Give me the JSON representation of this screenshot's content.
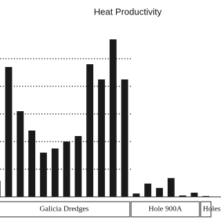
{
  "chart_data": {
    "type": "bar",
    "title": "Heat Productivity",
    "color": "#1a1a1a",
    "ylim": [
      0,
      6
    ],
    "yticks": [
      1,
      2,
      3,
      4,
      5
    ],
    "grid": true,
    "groups": [
      {
        "label": "Galicia Dredges",
        "values": [
          0.58,
          4.7,
          3.1,
          2.4,
          1.6,
          1.75,
          2.0,
          2.2,
          4.8,
          4.25,
          5.7,
          4.25
        ]
      },
      {
        "label": "Hole 900A",
        "values": [
          0.12,
          0.48,
          0.32,
          0.68,
          0.05,
          0.15
        ]
      },
      {
        "label": "Holes",
        "values": [
          0.03
        ]
      }
    ]
  }
}
